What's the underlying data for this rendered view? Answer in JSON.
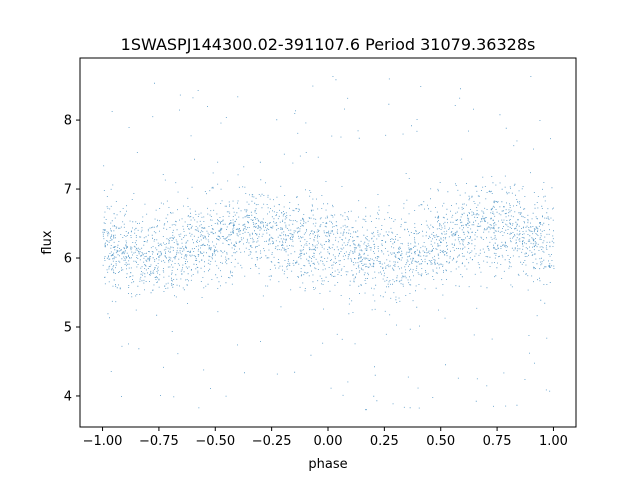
{
  "chart_data": {
    "type": "scatter",
    "title": "1SWASPJ144300.02-391107.6 Period 31079.36328s",
    "xlabel": "phase",
    "ylabel": "flux",
    "xlim": [
      -1.1,
      1.1
    ],
    "ylim": [
      3.55,
      8.9
    ],
    "x_ticks": [
      -1.0,
      -0.75,
      -0.5,
      -0.25,
      0.0,
      0.25,
      0.5,
      0.75,
      1.0
    ],
    "x_tick_labels": [
      "−1.00",
      "−0.75",
      "−0.50",
      "−0.25",
      "0.00",
      "0.25",
      "0.50",
      "0.75",
      "1.00"
    ],
    "y_ticks": [
      4,
      5,
      6,
      7,
      8
    ],
    "y_tick_labels": [
      "4",
      "5",
      "6",
      "7",
      "8"
    ],
    "grid": false,
    "legend": "none",
    "marker_color": "#1f77b4",
    "series": [
      {
        "x_range": [
          -1.0,
          1.0
        ],
        "trend": {
          "phase": [
            -1.0,
            -0.75,
            -0.5,
            -0.35,
            -0.25,
            0.0,
            0.2,
            0.35,
            0.5,
            0.65,
            0.75,
            1.0
          ],
          "flux": [
            6.15,
            6.05,
            6.25,
            6.45,
            6.35,
            6.2,
            6.05,
            6.05,
            6.2,
            6.45,
            6.45,
            6.15
          ]
        },
        "flux_min": 3.75,
        "flux_max": 8.65
      }
    ]
  }
}
